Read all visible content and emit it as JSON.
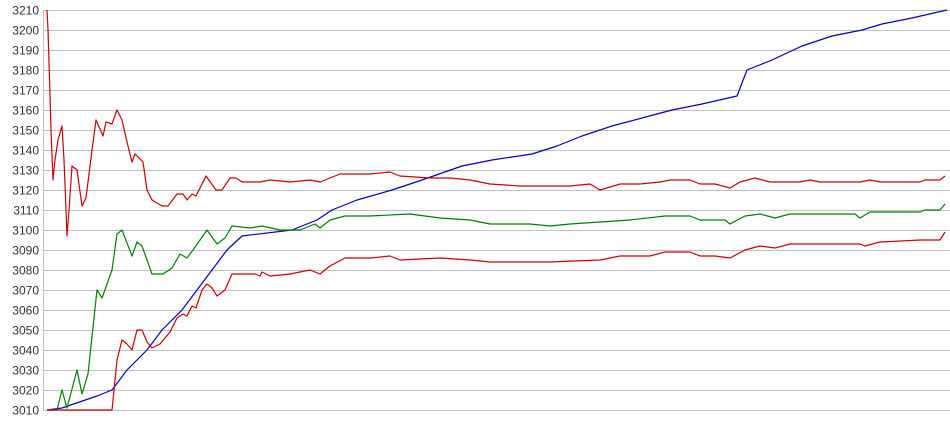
{
  "chart_data": {
    "type": "line",
    "title": "",
    "xlabel": "",
    "ylabel": "",
    "xlim": [
      0,
      180
    ],
    "ylim": [
      3010,
      3210
    ],
    "yticks": [
      3010,
      3020,
      3030,
      3040,
      3050,
      3060,
      3070,
      3080,
      3090,
      3100,
      3110,
      3120,
      3130,
      3140,
      3150,
      3160,
      3170,
      3180,
      3190,
      3200,
      3210
    ],
    "grid": "horizontal",
    "legend": "none",
    "series": [
      {
        "color": "#0000c8",
        "points": [
          [
            0,
            3010
          ],
          [
            3,
            3011
          ],
          [
            10,
            3017
          ],
          [
            13,
            3020
          ],
          [
            16,
            3030
          ],
          [
            20,
            3040
          ],
          [
            23,
            3050
          ],
          [
            27,
            3060
          ],
          [
            30,
            3070
          ],
          [
            33,
            3080
          ],
          [
            36,
            3090
          ],
          [
            39,
            3097
          ],
          [
            49,
            3100
          ],
          [
            54,
            3105
          ],
          [
            57,
            3110
          ],
          [
            62,
            3115
          ],
          [
            69,
            3120
          ],
          [
            75,
            3125
          ],
          [
            83,
            3132
          ],
          [
            89,
            3135
          ],
          [
            97,
            3138
          ],
          [
            102,
            3142
          ],
          [
            107,
            3147
          ],
          [
            113,
            3152
          ],
          [
            119,
            3156
          ],
          [
            125,
            3160
          ],
          [
            131,
            3163
          ],
          [
            138,
            3167
          ],
          [
            140,
            3180
          ],
          [
            145,
            3185
          ],
          [
            151,
            3192
          ],
          [
            157,
            3197
          ],
          [
            163,
            3200
          ],
          [
            167,
            3203
          ],
          [
            173,
            3206
          ],
          [
            180,
            3210
          ]
        ]
      },
      {
        "color": "#008000",
        "points": [
          [
            0,
            3010
          ],
          [
            2,
            3010
          ],
          [
            3,
            3020
          ],
          [
            4,
            3011
          ],
          [
            6,
            3030
          ],
          [
            7,
            3018
          ],
          [
            8.2,
            3028
          ],
          [
            10,
            3070
          ],
          [
            11,
            3066
          ],
          [
            13,
            3080
          ],
          [
            14,
            3098
          ],
          [
            15,
            3100
          ],
          [
            17,
            3087
          ],
          [
            18,
            3094
          ],
          [
            19,
            3092
          ],
          [
            21,
            3078
          ],
          [
            23.2,
            3078
          ],
          [
            25,
            3081
          ],
          [
            26.6,
            3088
          ],
          [
            28,
            3086
          ],
          [
            29.2,
            3090
          ],
          [
            32,
            3100
          ],
          [
            34,
            3093
          ],
          [
            35.6,
            3096
          ],
          [
            37,
            3102
          ],
          [
            40.6,
            3101
          ],
          [
            43,
            3102
          ],
          [
            46.6,
            3100
          ],
          [
            50.6,
            3100
          ],
          [
            53.6,
            3103
          ],
          [
            54.6,
            3101
          ],
          [
            56.6,
            3105
          ],
          [
            59.6,
            3107
          ],
          [
            64.6,
            3107
          ],
          [
            72.6,
            3108
          ],
          [
            78.6,
            3106
          ],
          [
            84.6,
            3105
          ],
          [
            88.6,
            3103
          ],
          [
            96.6,
            3103
          ],
          [
            100.6,
            3102
          ],
          [
            104.6,
            3103
          ],
          [
            110.6,
            3104
          ],
          [
            116.6,
            3105
          ],
          [
            123.6,
            3107
          ],
          [
            128.6,
            3107
          ],
          [
            130.6,
            3105
          ],
          [
            135.6,
            3105
          ],
          [
            136.6,
            3103
          ],
          [
            139.6,
            3107
          ],
          [
            142.6,
            3108
          ],
          [
            145.6,
            3106
          ],
          [
            148.6,
            3108
          ],
          [
            161.6,
            3108
          ],
          [
            162.6,
            3106
          ],
          [
            164.6,
            3109
          ],
          [
            174.6,
            3109
          ],
          [
            175.6,
            3110
          ],
          [
            178.6,
            3110
          ],
          [
            179.6,
            3113
          ]
        ]
      },
      {
        "color": "#d00000",
        "points": [
          [
            0,
            3210
          ],
          [
            0.2,
            3200
          ],
          [
            0.6,
            3168
          ],
          [
            0.8,
            3150
          ],
          [
            1.2,
            3125
          ],
          [
            1.6,
            3135
          ],
          [
            2.2,
            3145
          ],
          [
            3,
            3152
          ],
          [
            3.4,
            3135
          ],
          [
            3.8,
            3110
          ],
          [
            4,
            3097
          ],
          [
            4.4,
            3110
          ],
          [
            5,
            3132
          ],
          [
            6,
            3130
          ],
          [
            7,
            3112
          ],
          [
            7.8,
            3116
          ],
          [
            9,
            3140
          ],
          [
            9.8,
            3155
          ],
          [
            11.2,
            3147
          ],
          [
            11.8,
            3154
          ],
          [
            13,
            3153
          ],
          [
            14,
            3160
          ],
          [
            15,
            3155
          ],
          [
            16,
            3144
          ],
          [
            17,
            3134
          ],
          [
            17.6,
            3138
          ],
          [
            19.2,
            3134
          ],
          [
            20,
            3120
          ],
          [
            21,
            3115
          ],
          [
            23,
            3112
          ],
          [
            24.2,
            3112
          ],
          [
            26,
            3118
          ],
          [
            27.2,
            3118
          ],
          [
            28,
            3115
          ],
          [
            29,
            3118
          ],
          [
            29.8,
            3117
          ],
          [
            31.8,
            3127
          ],
          [
            33.8,
            3120
          ],
          [
            35,
            3120
          ],
          [
            36.6,
            3126
          ],
          [
            37.8,
            3126
          ],
          [
            39,
            3124
          ],
          [
            42.6,
            3124
          ],
          [
            44.6,
            3125
          ],
          [
            48.6,
            3124
          ],
          [
            52.6,
            3125
          ],
          [
            54.6,
            3124
          ],
          [
            58.6,
            3128
          ],
          [
            64.6,
            3128
          ],
          [
            68.6,
            3129
          ],
          [
            70.6,
            3127
          ],
          [
            76.6,
            3126
          ],
          [
            80.6,
            3126
          ],
          [
            84.6,
            3125
          ],
          [
            88.6,
            3123
          ],
          [
            94.6,
            3122
          ],
          [
            104.6,
            3122
          ],
          [
            108.6,
            3123
          ],
          [
            110.6,
            3120
          ],
          [
            114.6,
            3123
          ],
          [
            118.6,
            3123
          ],
          [
            122.6,
            3124
          ],
          [
            124.6,
            3125
          ],
          [
            128.6,
            3125
          ],
          [
            130.6,
            3123
          ],
          [
            133.6,
            3123
          ],
          [
            136.6,
            3121
          ],
          [
            138.6,
            3124
          ],
          [
            141.6,
            3126
          ],
          [
            144.6,
            3124
          ],
          [
            150.6,
            3124
          ],
          [
            152.6,
            3125
          ],
          [
            154.6,
            3124
          ],
          [
            162.6,
            3124
          ],
          [
            164.6,
            3125
          ],
          [
            166.6,
            3124
          ],
          [
            174.6,
            3124
          ],
          [
            175.6,
            3125
          ],
          [
            178.6,
            3125
          ],
          [
            179.6,
            3127
          ]
        ]
      },
      {
        "color": "#d00000",
        "points": [
          [
            0,
            3010
          ],
          [
            13,
            3010
          ],
          [
            14,
            3035
          ],
          [
            15,
            3045
          ],
          [
            16,
            3043
          ],
          [
            17,
            3040
          ],
          [
            18,
            3050
          ],
          [
            19,
            3050
          ],
          [
            20,
            3044
          ],
          [
            21,
            3041
          ],
          [
            22.6,
            3043
          ],
          [
            24.6,
            3049
          ],
          [
            26,
            3056
          ],
          [
            27.2,
            3058
          ],
          [
            28,
            3057
          ],
          [
            29,
            3062
          ],
          [
            29.8,
            3061
          ],
          [
            31,
            3070
          ],
          [
            32,
            3073
          ],
          [
            33,
            3071
          ],
          [
            34,
            3067
          ],
          [
            35.6,
            3070
          ],
          [
            37,
            3078
          ],
          [
            41.6,
            3078
          ],
          [
            42.6,
            3077
          ],
          [
            43,
            3079
          ],
          [
            44.6,
            3077
          ],
          [
            48.6,
            3078
          ],
          [
            52.6,
            3080
          ],
          [
            54.6,
            3078
          ],
          [
            56.6,
            3082
          ],
          [
            59.6,
            3086
          ],
          [
            64.6,
            3086
          ],
          [
            68.6,
            3087
          ],
          [
            70.6,
            3085
          ],
          [
            78.6,
            3086
          ],
          [
            84.6,
            3085
          ],
          [
            88.6,
            3084
          ],
          [
            100.6,
            3084
          ],
          [
            110.6,
            3085
          ],
          [
            114.6,
            3087
          ],
          [
            120.6,
            3087
          ],
          [
            123.6,
            3089
          ],
          [
            128.6,
            3089
          ],
          [
            130.6,
            3087
          ],
          [
            133.6,
            3087
          ],
          [
            136.6,
            3086
          ],
          [
            139.6,
            3090
          ],
          [
            142.6,
            3092
          ],
          [
            145.6,
            3091
          ],
          [
            148.6,
            3093
          ],
          [
            162.6,
            3093
          ],
          [
            163.6,
            3092
          ],
          [
            166.6,
            3094
          ],
          [
            174.6,
            3095
          ],
          [
            178.6,
            3095
          ],
          [
            179.6,
            3099
          ]
        ]
      }
    ]
  }
}
